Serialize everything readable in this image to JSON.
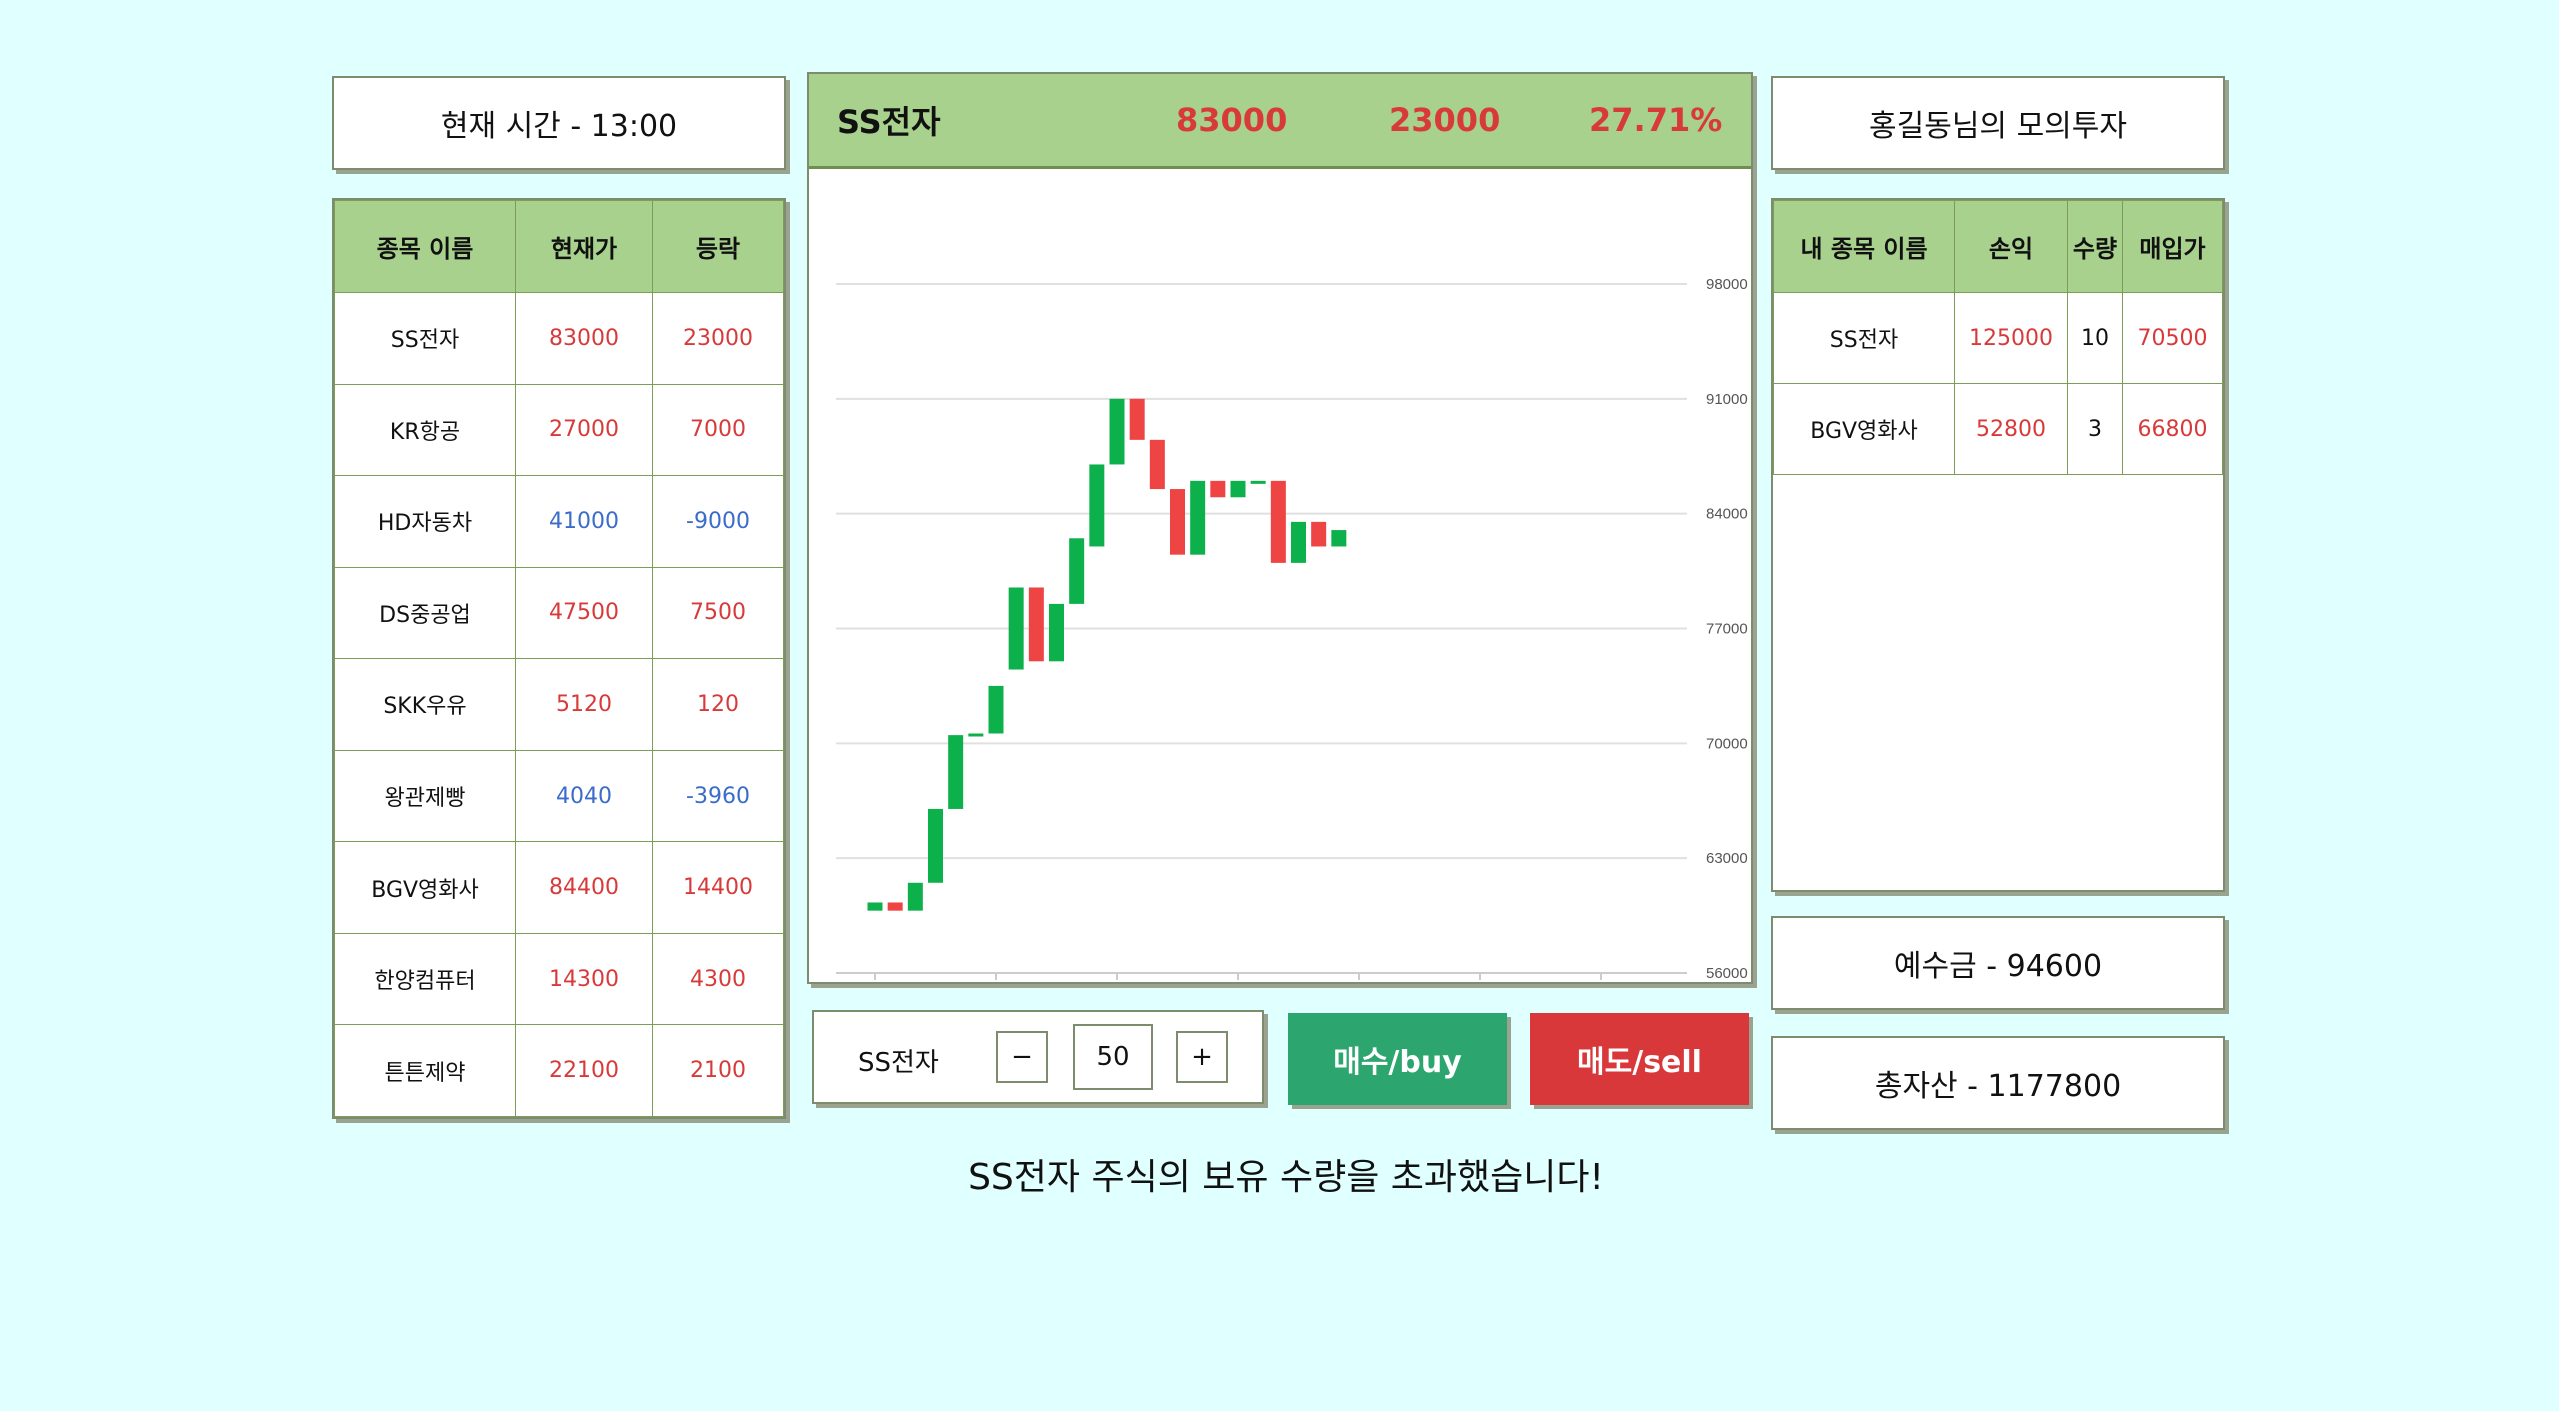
{
  "time_label": "현재 시간 - 13:00",
  "title_label": "홍길동님의 모의투자",
  "stock_table": {
    "headers": [
      "종목 이름",
      "현재가",
      "등락"
    ],
    "rows": [
      {
        "name": "SS전자",
        "price": "83000",
        "change": "23000",
        "dir": "up"
      },
      {
        "name": "KR항공",
        "price": "27000",
        "change": "7000",
        "dir": "up"
      },
      {
        "name": "HD자동차",
        "price": "41000",
        "change": "-9000",
        "dir": "down"
      },
      {
        "name": "DS중공업",
        "price": "47500",
        "change": "7500",
        "dir": "up"
      },
      {
        "name": "SKK우유",
        "price": "5120",
        "change": "120",
        "dir": "up"
      },
      {
        "name": "왕관제빵",
        "price": "4040",
        "change": "-3960",
        "dir": "down"
      },
      {
        "name": "BGV영화사",
        "price": "84400",
        "change": "14400",
        "dir": "up"
      },
      {
        "name": "한양컴퓨터",
        "price": "14300",
        "change": "4300",
        "dir": "up"
      },
      {
        "name": "튼튼제약",
        "price": "22100",
        "change": "2100",
        "dir": "up"
      }
    ]
  },
  "chart_header": {
    "name": "SS전자",
    "price": "83000",
    "change": "23000",
    "percent": "27.71%"
  },
  "chart_data": {
    "type": "candlestick",
    "y_ticks": [
      "98000",
      "91000",
      "84000",
      "77000",
      "70000",
      "63000",
      "56000"
    ],
    "ylim": [
      56000,
      98000
    ],
    "x_ticks": [
      "09:00",
      "10:00",
      "11:00",
      "12:00",
      "13:00",
      "14:00",
      "15:00"
    ],
    "xlim": [
      "09:00",
      "15:00"
    ],
    "candles": [
      {
        "t": "09:00",
        "open": 59800,
        "close": 60300
      },
      {
        "t": "09:10",
        "open": 60300,
        "close": 59800
      },
      {
        "t": "09:20",
        "open": 59800,
        "close": 61500
      },
      {
        "t": "09:30",
        "open": 61500,
        "close": 66000
      },
      {
        "t": "09:40",
        "open": 66000,
        "close": 70500
      },
      {
        "t": "09:50",
        "open": 70500,
        "close": 70600
      },
      {
        "t": "10:00",
        "open": 70600,
        "close": 73500
      },
      {
        "t": "10:10",
        "open": 74500,
        "close": 79500
      },
      {
        "t": "10:20",
        "open": 79500,
        "close": 75000
      },
      {
        "t": "10:30",
        "open": 75000,
        "close": 78500
      },
      {
        "t": "10:40",
        "open": 78500,
        "close": 82500
      },
      {
        "t": "10:50",
        "open": 82000,
        "close": 87000
      },
      {
        "t": "11:00",
        "open": 87000,
        "close": 91000
      },
      {
        "t": "11:10",
        "open": 91000,
        "close": 88500
      },
      {
        "t": "11:20",
        "open": 88500,
        "close": 85500
      },
      {
        "t": "11:30",
        "open": 85500,
        "close": 81500
      },
      {
        "t": "11:40",
        "open": 81500,
        "close": 86000
      },
      {
        "t": "11:50",
        "open": 86000,
        "close": 85000
      },
      {
        "t": "12:00",
        "open": 85000,
        "close": 86000
      },
      {
        "t": "12:10",
        "open": 86000,
        "close": 86000
      },
      {
        "t": "12:20",
        "open": 86000,
        "close": 81000
      },
      {
        "t": "12:30",
        "open": 81000,
        "close": 83500
      },
      {
        "t": "12:40",
        "open": 83500,
        "close": 82000
      },
      {
        "t": "12:50",
        "open": 82000,
        "close": 83000
      }
    ],
    "up_color": "#0db14b",
    "down_color": "#ee4444"
  },
  "trade": {
    "stock": "SS전자",
    "minus": "−",
    "plus": "+",
    "quantity": "50",
    "buy_label": "매수/buy",
    "sell_label": "매도/sell"
  },
  "message": "SS전자 주식의 보유 수량을 초과했습니다!",
  "my_table": {
    "headers": [
      "내 종목 이름",
      "손익",
      "수량",
      "매입가"
    ],
    "rows": [
      {
        "name": "SS전자",
        "pnl": "125000",
        "qty": "10",
        "avg": "70500"
      },
      {
        "name": "BGV영화사",
        "pnl": "52800",
        "qty": "3",
        "avg": "66800"
      }
    ]
  },
  "deposit_label": "예수금 - 94600",
  "total_label": "총자산 - 1177800",
  "colors": {
    "buy": "#2da56f",
    "sell": "#d9383a",
    "header": "#a9d18e",
    "background": "#e0ffff"
  }
}
